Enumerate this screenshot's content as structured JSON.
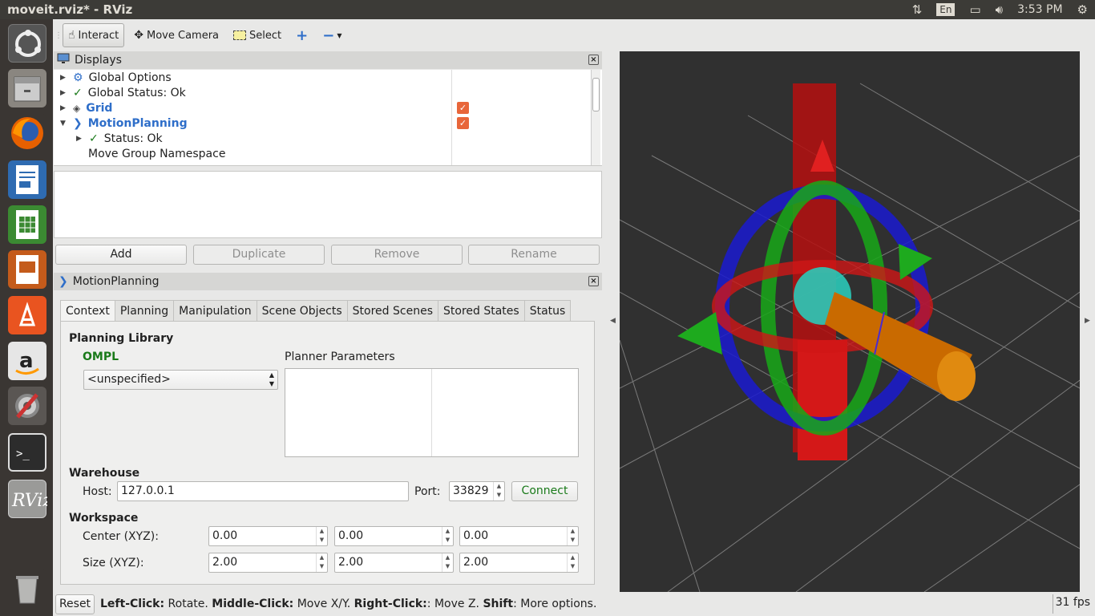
{
  "window": {
    "title": "moveit.rviz* - RViz"
  },
  "tray": {
    "lang": "En",
    "time": "3:53 PM"
  },
  "toolbar": {
    "interact": "Interact",
    "move_camera": "Move Camera",
    "select": "Select"
  },
  "displays": {
    "title": "Displays",
    "items": [
      "Global Options",
      "Global Status: Ok",
      "Grid",
      "MotionPlanning",
      "Status: Ok",
      "Move Group Namespace"
    ],
    "buttons": {
      "add": "Add",
      "duplicate": "Duplicate",
      "remove": "Remove",
      "rename": "Rename"
    }
  },
  "motion": {
    "title": "MotionPlanning",
    "tabs": [
      "Context",
      "Planning",
      "Manipulation",
      "Scene Objects",
      "Stored Scenes",
      "Stored States",
      "Status"
    ],
    "planning_library": "Planning Library",
    "ompl": "OMPL",
    "planner": "<unspecified>",
    "planner_params": "Planner Parameters",
    "warehouse": "Warehouse",
    "host_label": "Host:",
    "host": "127.0.0.1",
    "port_label": "Port:",
    "port": "33829",
    "connect": "Connect",
    "workspace": "Workspace",
    "center_label": "Center (XYZ):",
    "size_label": "Size (XYZ):",
    "center": [
      "0.00",
      "0.00",
      "0.00"
    ],
    "size": [
      "2.00",
      "2.00",
      "2.00"
    ]
  },
  "status": {
    "reset": "Reset",
    "lc": "Left-Click:",
    "lc_t": " Rotate. ",
    "mc": "Middle-Click:",
    "mc_t": " Move X/Y. ",
    "rc": "Right-Click:",
    "rc_t": ": Move Z. ",
    "sh": "Shift",
    "sh_t": ": More options.",
    "fps": "31 fps"
  }
}
